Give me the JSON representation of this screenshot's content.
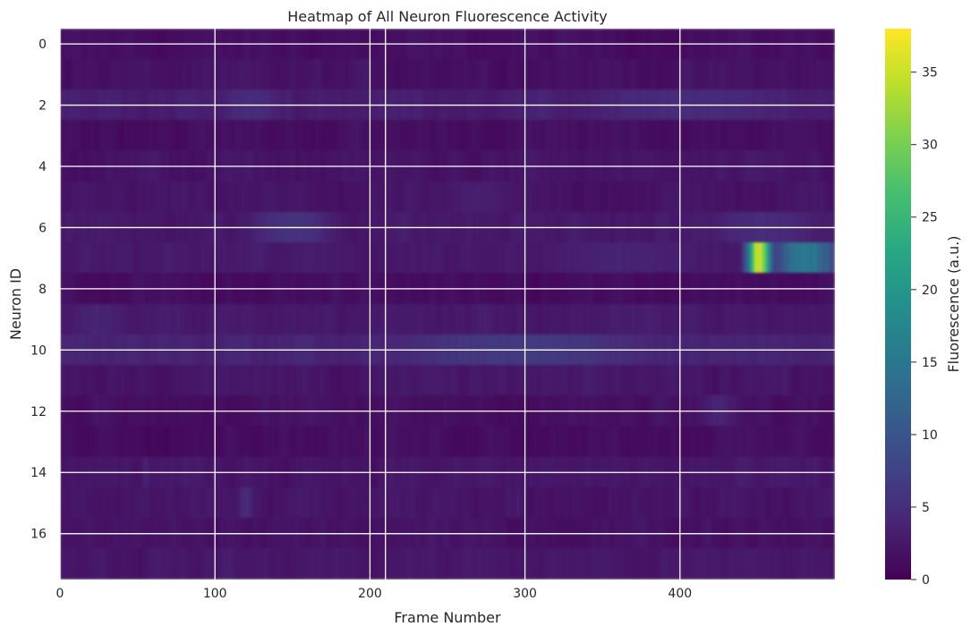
{
  "chart_data": {
    "type": "heatmap",
    "title": "Heatmap of All Neuron Fluorescence Activity",
    "xlabel": "Frame Number",
    "ylabel": "Neuron ID",
    "xlim": [
      0,
      500
    ],
    "ylim": [
      -0.5,
      17.5
    ],
    "y_inverted": true,
    "n_neurons": 18,
    "n_frames": 500,
    "xticks": [
      0,
      100,
      200,
      300,
      400
    ],
    "yticks": [
      0,
      2,
      4,
      6,
      8,
      10,
      12,
      14,
      16
    ],
    "extra_vlines": [
      210
    ],
    "grid": true,
    "colormap": "viridis",
    "colorbar": {
      "label": "Fluorescence (a.u.)",
      "range": [
        0,
        38
      ],
      "ticks": [
        0,
        5,
        10,
        15,
        20,
        25,
        30,
        35
      ]
    },
    "baseline_activity": [
      1.5,
      1.8,
      3.2,
      1.5,
      2.0,
      2.0,
      2.6,
      2.6,
      1.4,
      2.6,
      3.8,
      2.3,
      1.6,
      1.5,
      2.3,
      2.1,
      1.9,
      2.4
    ],
    "activity_events": [
      {
        "neuron": 2,
        "frame_start": 95,
        "frame_end": 150,
        "peak": 5
      },
      {
        "neuron": 2,
        "frame_start": 310,
        "frame_end": 500,
        "peak": 5
      },
      {
        "neuron": 5,
        "frame_start": 240,
        "frame_end": 300,
        "peak": 3.5
      },
      {
        "neuron": 6,
        "frame_start": 120,
        "frame_end": 180,
        "peak": 6
      },
      {
        "neuron": 6,
        "frame_start": 410,
        "frame_end": 500,
        "peak": 5
      },
      {
        "neuron": 7,
        "frame_start": 290,
        "frame_end": 440,
        "peak": 4
      },
      {
        "neuron": 7,
        "frame_start": 440,
        "frame_end": 462,
        "peak": 38
      },
      {
        "neuron": 7,
        "frame_start": 462,
        "frame_end": 500,
        "peak": 17
      },
      {
        "neuron": 9,
        "frame_start": 0,
        "frame_end": 50,
        "peak": 4
      },
      {
        "neuron": 10,
        "frame_start": 195,
        "frame_end": 400,
        "peak": 7
      },
      {
        "neuron": 12,
        "frame_start": 410,
        "frame_end": 440,
        "peak": 4
      },
      {
        "neuron": 14,
        "frame_start": 50,
        "frame_end": 60,
        "peak": 4
      },
      {
        "neuron": 15,
        "frame_start": 110,
        "frame_end": 130,
        "peak": 5
      }
    ]
  }
}
